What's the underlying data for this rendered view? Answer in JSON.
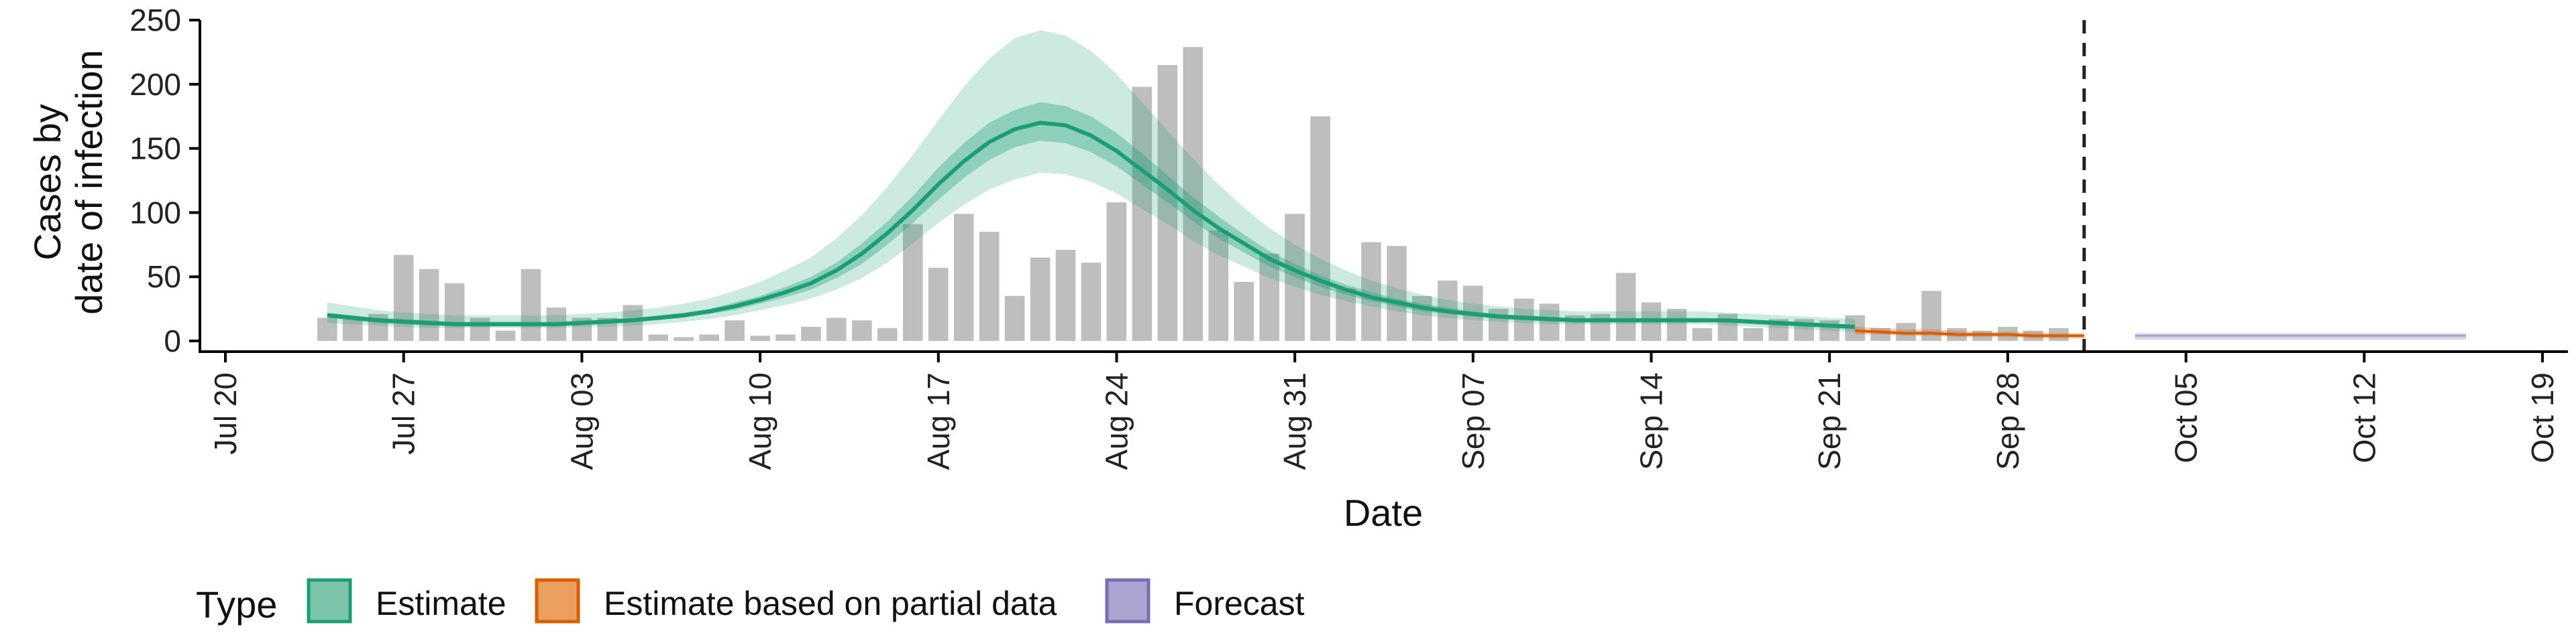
{
  "chart_data": {
    "type": "bar",
    "xlabel": "Date",
    "ylabel_lines": [
      "Cases by",
      "date of infection"
    ],
    "ylim": [
      0,
      250
    ],
    "yticks": [
      0,
      50,
      100,
      150,
      200,
      250
    ],
    "xlim": [
      "2020-07-19",
      "2020-10-20"
    ],
    "xticks": [
      {
        "date": "2020-07-20",
        "label": "Jul 20"
      },
      {
        "date": "2020-07-27",
        "label": "Jul 27"
      },
      {
        "date": "2020-08-03",
        "label": "Aug 03"
      },
      {
        "date": "2020-08-10",
        "label": "Aug 10"
      },
      {
        "date": "2020-08-17",
        "label": "Aug 17"
      },
      {
        "date": "2020-08-24",
        "label": "Aug 24"
      },
      {
        "date": "2020-08-31",
        "label": "Aug 31"
      },
      {
        "date": "2020-09-07",
        "label": "Sep 07"
      },
      {
        "date": "2020-09-14",
        "label": "Sep 14"
      },
      {
        "date": "2020-09-21",
        "label": "Sep 21"
      },
      {
        "date": "2020-09-28",
        "label": "Sep 28"
      },
      {
        "date": "2020-10-05",
        "label": "Oct 05"
      },
      {
        "date": "2020-10-12",
        "label": "Oct 12"
      },
      {
        "date": "2020-10-19",
        "label": "Oct 19"
      }
    ],
    "bar_start_date": "2020-07-24",
    "bar_values": [
      18,
      17,
      21,
      67,
      56,
      45,
      18,
      8,
      56,
      26,
      18,
      18,
      28,
      5,
      3,
      5,
      16,
      4,
      5,
      11,
      18,
      16,
      10,
      91,
      57,
      99,
      85,
      35,
      65,
      71,
      61,
      108,
      198,
      215,
      229,
      86,
      46,
      68,
      99,
      175,
      41,
      77,
      74,
      35,
      47,
      43,
      25,
      33,
      29,
      20,
      21,
      53,
      30,
      25,
      10,
      21,
      10,
      17,
      17,
      16,
      20,
      10,
      14,
      39,
      10,
      8,
      11,
      8,
      10
    ],
    "data_cutoff_date": "2020-10-01",
    "legend_title": "Type",
    "legend": [
      {
        "label": "Estimate",
        "fill": "#7bc4aa",
        "stroke": "#1b9e77"
      },
      {
        "label": "Estimate based on partial data",
        "fill": "#eba060",
        "stroke": "#d95f02"
      },
      {
        "label": "Forecast",
        "fill": "#aaa6d1",
        "stroke": "#7570b3"
      }
    ],
    "bar_color": "#bebebe",
    "estimate": {
      "start_date": "2020-07-24",
      "median": [
        20,
        18,
        16,
        15,
        14,
        13,
        13,
        13,
        13,
        13,
        14,
        15,
        16,
        18,
        20,
        23,
        27,
        32,
        38,
        45,
        55,
        68,
        84,
        102,
        122,
        140,
        155,
        165,
        170,
        168,
        160,
        148,
        133,
        118,
        102,
        88,
        76,
        64,
        55,
        47,
        40,
        34,
        30,
        26,
        23,
        21,
        19,
        18,
        17,
        16,
        16,
        16,
        16,
        16,
        16,
        16,
        15,
        14,
        13,
        12,
        11
      ],
      "lower50": [
        18,
        16,
        14,
        13,
        12,
        12,
        12,
        12,
        12,
        12,
        13,
        14,
        15,
        16,
        18,
        21,
        24,
        29,
        34,
        40,
        49,
        60,
        75,
        92,
        110,
        127,
        141,
        151,
        156,
        154,
        147,
        136,
        122,
        108,
        93,
        80,
        69,
        58,
        50,
        42,
        36,
        31,
        27,
        23,
        21,
        19,
        17,
        16,
        15,
        15,
        15,
        15,
        15,
        15,
        15,
        14,
        13,
        12,
        11,
        10,
        9
      ],
      "upper50": [
        22,
        20,
        18,
        17,
        16,
        15,
        15,
        15,
        15,
        15,
        16,
        17,
        18,
        20,
        22,
        25,
        30,
        35,
        42,
        50,
        61,
        76,
        93,
        113,
        135,
        154,
        170,
        180,
        186,
        183,
        175,
        162,
        146,
        129,
        112,
        97,
        83,
        70,
        60,
        51,
        44,
        38,
        33,
        29,
        26,
        23,
        21,
        20,
        19,
        18,
        18,
        18,
        18,
        18,
        18,
        17,
        16,
        15,
        14,
        13,
        12
      ],
      "lower90": [
        14,
        13,
        12,
        11,
        10,
        10,
        10,
        10,
        10,
        10,
        11,
        11,
        12,
        13,
        15,
        17,
        20,
        24,
        28,
        33,
        40,
        49,
        61,
        76,
        92,
        106,
        118,
        126,
        131,
        130,
        124,
        115,
        103,
        91,
        78,
        67,
        58,
        49,
        42,
        36,
        31,
        27,
        23,
        20,
        18,
        16,
        15,
        14,
        13,
        13,
        13,
        13,
        13,
        13,
        13,
        12,
        11,
        10,
        9,
        8,
        7
      ],
      "upper90": [
        30,
        27,
        24,
        22,
        21,
        20,
        20,
        20,
        20,
        20,
        21,
        22,
        24,
        26,
        29,
        33,
        39,
        46,
        55,
        65,
        80,
        98,
        120,
        145,
        172,
        198,
        220,
        236,
        242,
        238,
        226,
        208,
        186,
        164,
        142,
        122,
        104,
        88,
        75,
        64,
        55,
        47,
        41,
        36,
        32,
        29,
        27,
        25,
        24,
        23,
        23,
        23,
        23,
        23,
        23,
        22,
        21,
        20,
        19,
        18,
        17
      ]
    },
    "partial": {
      "start_date": "2020-09-22",
      "median": [
        8,
        7,
        6,
        6,
        5,
        5,
        5,
        4,
        4,
        4
      ],
      "lower": [
        5,
        5,
        4,
        4,
        3,
        3,
        3,
        2,
        2,
        2
      ],
      "upper": [
        11,
        10,
        9,
        9,
        8,
        7,
        7,
        7,
        6,
        6
      ]
    },
    "forecast": {
      "start_date": "2020-10-03",
      "end_date": "2020-10-16",
      "median": 4,
      "lower": 1,
      "upper": 6
    }
  }
}
